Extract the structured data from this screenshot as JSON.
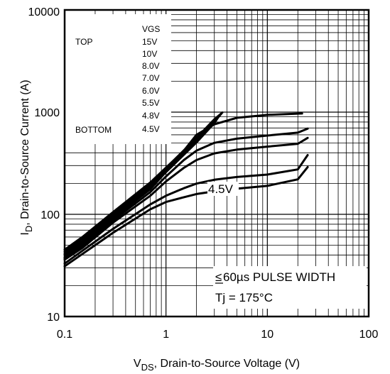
{
  "chart_data": {
    "type": "line",
    "x_scale": "log",
    "y_scale": "log",
    "xlim": [
      0.1,
      100
    ],
    "ylim": [
      10,
      10000
    ],
    "grid": true,
    "x_tick_labels": [
      "0.1",
      "1",
      "10",
      "100"
    ],
    "x_tick_values": [
      0.1,
      1,
      10,
      100
    ],
    "y_tick_labels": [
      "10",
      "100",
      "1000",
      "10000"
    ],
    "y_tick_values": [
      10,
      100,
      1000,
      10000
    ],
    "xlabel": {
      "main": "V",
      "sub": "DS",
      "rest": ", Drain-to-Source Voltage (V)"
    },
    "ylabel": {
      "main": "I",
      "sub": "D",
      "rest": ", Drain-to-Source Current (A)"
    },
    "legend": {
      "position": "top-left",
      "header": "VGS",
      "top_label": "TOP",
      "bottom_label": "BOTTOM",
      "entries": [
        "15V",
        "10V",
        "8.0V",
        "7.0V",
        "6.0V",
        "5.5V",
        "4.8V",
        "4.5V"
      ]
    },
    "annotations": {
      "curve_label": "4.5V",
      "pulse_prefix": "≤",
      "pulse": "60µs PULSE WIDTH",
      "temperature": "Tj = 175°C"
    },
    "series": [
      {
        "name": "15V",
        "x": [
          0.1,
          0.15,
          0.3,
          0.7,
          1.2,
          2.0,
          3.0,
          3.6
        ],
        "y": [
          45,
          60,
          105,
          205,
          340,
          560,
          850,
          990
        ]
      },
      {
        "name": "10V",
        "x": [
          0.1,
          0.15,
          0.3,
          0.7,
          1.2,
          2.0,
          3.0,
          3.5
        ],
        "y": [
          43,
          58,
          102,
          198,
          330,
          545,
          830,
          960
        ]
      },
      {
        "name": "8.0V",
        "x": [
          0.1,
          0.15,
          0.3,
          0.7,
          1.2,
          2.0,
          3.0,
          3.4
        ],
        "y": [
          41,
          55,
          98,
          190,
          318,
          525,
          805,
          930
        ]
      },
      {
        "name": "7.0V",
        "x": [
          0.1,
          0.15,
          0.3,
          0.7,
          1.2,
          2.0,
          3.0,
          3.3
        ],
        "y": [
          40,
          53,
          95,
          184,
          308,
          505,
          780,
          900
        ]
      },
      {
        "name": "6.0V",
        "x": [
          0.1,
          0.15,
          0.3,
          0.7,
          1.0,
          1.5,
          2.0,
          3.0,
          5.0,
          10.0,
          22.0
        ],
        "y": [
          38,
          51,
          91,
          176,
          260,
          420,
          600,
          760,
          880,
          940,
          970
        ]
      },
      {
        "name": "5.5V",
        "x": [
          0.1,
          0.15,
          0.3,
          0.7,
          1.0,
          1.5,
          2.0,
          3.0,
          5.0,
          10.0,
          20.0,
          25.0
        ],
        "y": [
          37,
          49,
          87,
          165,
          235,
          340,
          420,
          500,
          550,
          590,
          630,
          690
        ]
      },
      {
        "name": "4.8V",
        "x": [
          0.1,
          0.15,
          0.3,
          0.7,
          1.0,
          1.5,
          2.0,
          3.0,
          5.0,
          10.0,
          20.0,
          25.0
        ],
        "y": [
          36,
          47,
          83,
          152,
          210,
          285,
          340,
          395,
          430,
          460,
          490,
          560
        ]
      },
      {
        "name": "4.5V",
        "x": [
          0.1,
          0.15,
          0.3,
          0.7,
          1.0,
          1.5,
          2.0,
          3.0,
          5.0,
          10.0,
          20.0,
          25.0
        ],
        "y": [
          33,
          44,
          72,
          125,
          152,
          180,
          200,
          218,
          232,
          245,
          275,
          380
        ]
      },
      {
        "name": "4.5V",
        "x": [
          0.1,
          0.15,
          0.3,
          0.7,
          1.0,
          1.5,
          2.0,
          3.0,
          5.0,
          10.0,
          20.0,
          25.0
        ],
        "y": [
          31,
          41,
          66,
          112,
          132,
          147,
          158,
          168,
          178,
          190,
          220,
          290
        ]
      }
    ]
  }
}
